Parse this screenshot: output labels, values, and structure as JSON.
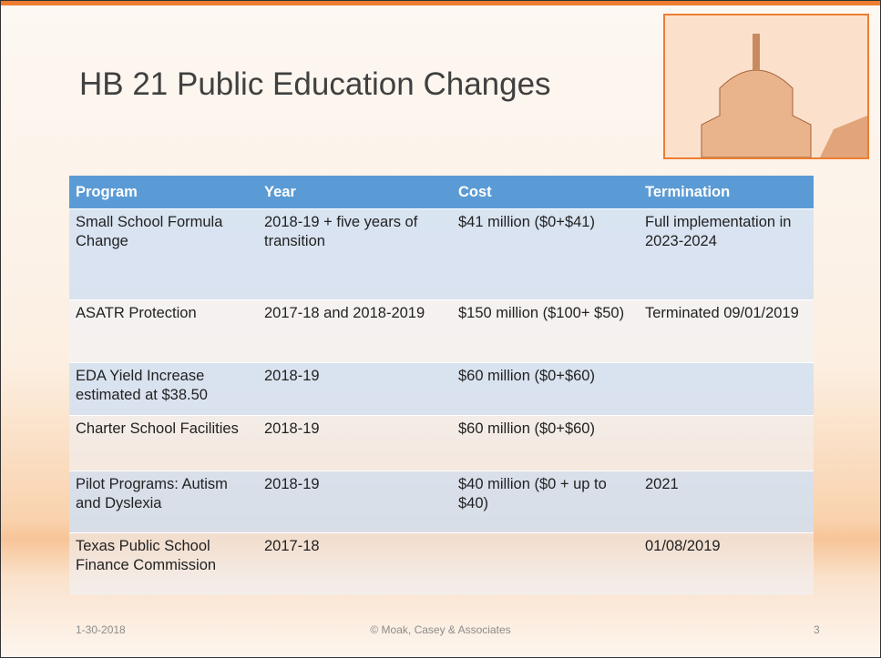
{
  "header": {
    "title": "HB 21 Public Education Changes"
  },
  "table": {
    "columns": [
      "Program",
      "Year",
      "Cost",
      "Termination"
    ],
    "rows": [
      [
        "Small School Formula Change",
        "2018-19 + five years of transition",
        "$41 million ($0+$41)",
        "Full implementation in 2023-2024"
      ],
      [
        "ASATR Protection",
        "2017-18 and 2018-2019",
        "$150 million ($100+ $50)",
        "Terminated 09/01/2019"
      ],
      [
        "EDA Yield Increase estimated at $38.50",
        "2018-19",
        "$60 million ($0+$60)",
        null
      ],
      [
        "Charter School Facilities",
        "2018-19",
        "$60 million ($0+$60)",
        null
      ],
      [
        "Pilot Programs: Autism and Dyslexia",
        "2018-19",
        "$40 million ($0 + up to $40)",
        "2021"
      ],
      [
        "Texas Public School Finance Commission",
        "2017-18",
        null,
        "01/08/2019"
      ]
    ]
  },
  "footer": {
    "date": "1-30-2018",
    "credit": "© Moak, Casey & Associates",
    "page": "3"
  }
}
